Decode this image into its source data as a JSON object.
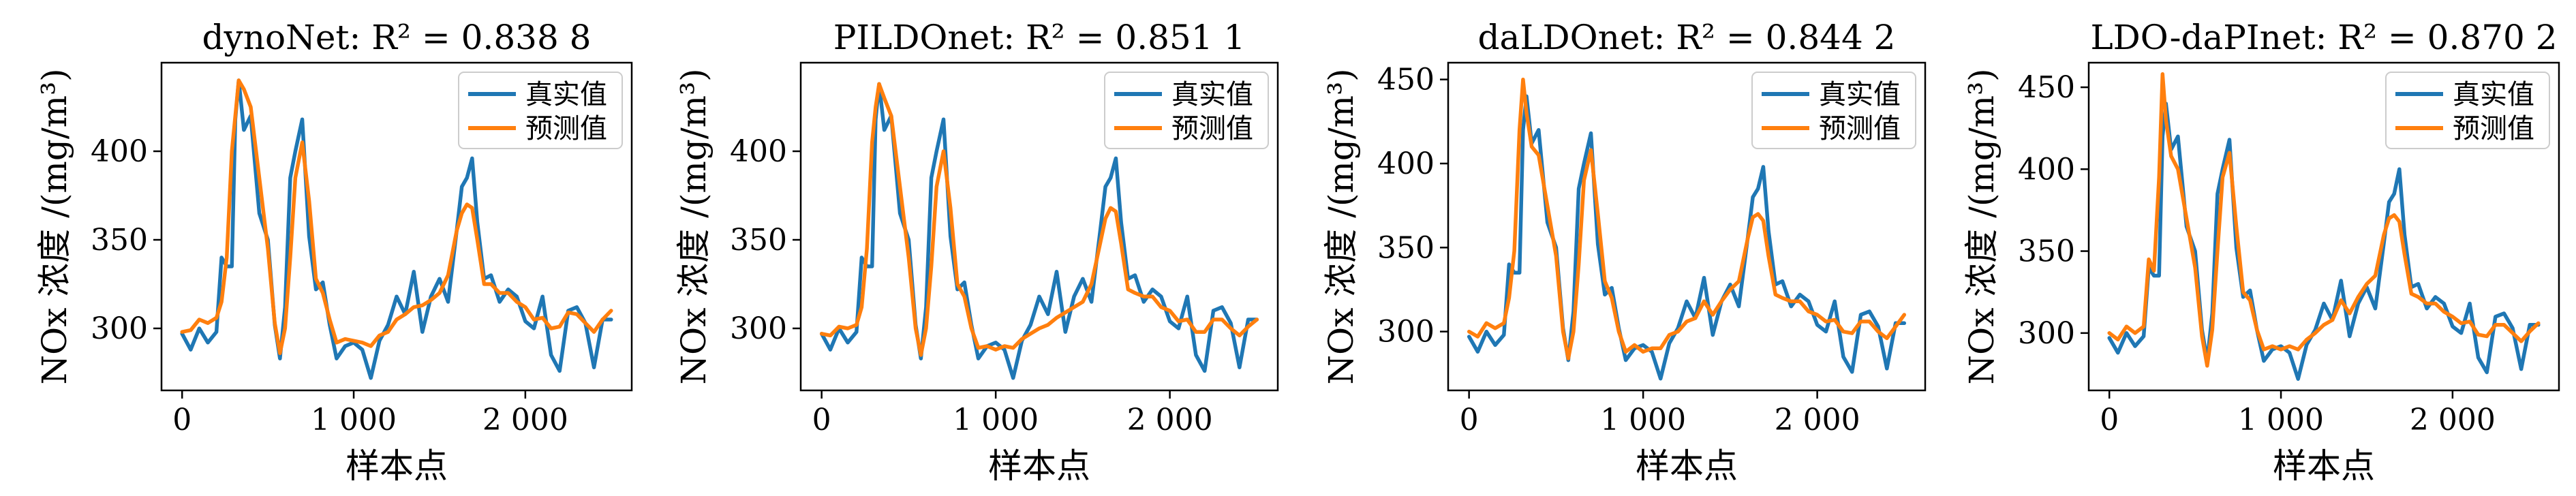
{
  "colors": {
    "actual": "#1f77b4",
    "predicted": "#ff7f0e"
  },
  "chart_data": [
    {
      "type": "line",
      "title": "dynoNet: R² = 0.838 8",
      "xlabel": "样本点",
      "ylabel": "NOx 浓度 /(mg/m³)",
      "xlim": [
        -120,
        2620
      ],
      "ylim": [
        265,
        450
      ],
      "xticks": [
        0,
        1000,
        2000
      ],
      "xtick_labels": [
        "0",
        "1 000",
        "2 000"
      ],
      "yticks": [
        300,
        350,
        400
      ],
      "ytick_labels": [
        "300",
        "350",
        "400"
      ],
      "legend_position": "top-right",
      "series": [
        {
          "name": "真实值",
          "color": "#1f77b4",
          "x": [
            0,
            50,
            100,
            150,
            200,
            230,
            260,
            290,
            310,
            330,
            360,
            400,
            450,
            500,
            540,
            570,
            600,
            630,
            660,
            700,
            740,
            780,
            820,
            860,
            900,
            950,
            1000,
            1050,
            1100,
            1150,
            1200,
            1250,
            1300,
            1350,
            1400,
            1450,
            1500,
            1550,
            1600,
            1630,
            1660,
            1690,
            1720,
            1760,
            1800,
            1850,
            1900,
            1950,
            2000,
            2050,
            2100,
            2150,
            2200,
            2250,
            2300,
            2350,
            2400,
            2450,
            2500
          ],
          "y": [
            297,
            288,
            300,
            292,
            298,
            340,
            335,
            335,
            418,
            440,
            412,
            420,
            365,
            350,
            302,
            283,
            312,
            385,
            400,
            418,
            352,
            322,
            326,
            302,
            283,
            290,
            292,
            288,
            272,
            293,
            302,
            318,
            308,
            332,
            298,
            318,
            328,
            315,
            355,
            380,
            385,
            396,
            360,
            328,
            330,
            315,
            322,
            318,
            304,
            300,
            318,
            285,
            276,
            310,
            312,
            303,
            278,
            305,
            305
          ]
        },
        {
          "name": "预测值",
          "color": "#ff7f0e",
          "x": [
            0,
            50,
            100,
            150,
            200,
            230,
            260,
            290,
            310,
            330,
            360,
            400,
            450,
            500,
            540,
            570,
            600,
            630,
            660,
            700,
            740,
            780,
            820,
            860,
            900,
            950,
            1000,
            1050,
            1100,
            1150,
            1200,
            1250,
            1300,
            1350,
            1400,
            1450,
            1500,
            1550,
            1600,
            1630,
            1660,
            1690,
            1720,
            1760,
            1800,
            1850,
            1900,
            1950,
            2000,
            2050,
            2100,
            2150,
            2200,
            2250,
            2300,
            2350,
            2400,
            2450,
            2500
          ],
          "y": [
            298,
            299,
            305,
            303,
            306,
            315,
            340,
            400,
            420,
            440,
            435,
            425,
            385,
            345,
            303,
            286,
            300,
            340,
            385,
            405,
            372,
            328,
            320,
            305,
            292,
            294,
            293,
            292,
            290,
            296,
            298,
            305,
            308,
            312,
            313,
            316,
            320,
            330,
            355,
            365,
            370,
            368,
            350,
            325,
            325,
            320,
            320,
            315,
            312,
            305,
            306,
            300,
            301,
            309,
            308,
            303,
            298,
            305,
            310
          ]
        }
      ]
    },
    {
      "type": "line",
      "title": "PILDOnet: R² = 0.851 1",
      "xlabel": "样本点",
      "ylabel": "NOx 浓度 /(mg/m³)",
      "xlim": [
        -120,
        2620
      ],
      "ylim": [
        265,
        450
      ],
      "xticks": [
        0,
        1000,
        2000
      ],
      "xtick_labels": [
        "0",
        "1 000",
        "2 000"
      ],
      "yticks": [
        300,
        350,
        400
      ],
      "ytick_labels": [
        "300",
        "350",
        "400"
      ],
      "legend_position": "top-right",
      "series": [
        {
          "name": "真实值",
          "color": "#1f77b4",
          "x": [
            0,
            50,
            100,
            150,
            200,
            230,
            260,
            290,
            310,
            330,
            360,
            400,
            450,
            500,
            540,
            570,
            600,
            630,
            660,
            700,
            740,
            780,
            820,
            860,
            900,
            950,
            1000,
            1050,
            1100,
            1150,
            1200,
            1250,
            1300,
            1350,
            1400,
            1450,
            1500,
            1550,
            1600,
            1630,
            1660,
            1690,
            1720,
            1760,
            1800,
            1850,
            1900,
            1950,
            2000,
            2050,
            2100,
            2150,
            2200,
            2250,
            2300,
            2350,
            2400,
            2450,
            2500
          ],
          "y": [
            297,
            288,
            300,
            292,
            298,
            340,
            335,
            335,
            418,
            438,
            412,
            420,
            365,
            350,
            302,
            283,
            312,
            385,
            400,
            418,
            352,
            322,
            326,
            302,
            283,
            290,
            292,
            288,
            272,
            293,
            302,
            318,
            308,
            332,
            298,
            318,
            328,
            315,
            355,
            380,
            385,
            396,
            360,
            328,
            330,
            315,
            322,
            318,
            304,
            300,
            318,
            285,
            276,
            310,
            312,
            303,
            278,
            305,
            305
          ]
        },
        {
          "name": "预测值",
          "color": "#ff7f0e",
          "x": [
            0,
            50,
            100,
            150,
            200,
            230,
            260,
            290,
            310,
            330,
            360,
            400,
            450,
            500,
            540,
            570,
            600,
            630,
            660,
            700,
            740,
            780,
            820,
            860,
            900,
            950,
            1000,
            1050,
            1100,
            1150,
            1200,
            1250,
            1300,
            1350,
            1400,
            1450,
            1500,
            1550,
            1600,
            1630,
            1660,
            1690,
            1720,
            1760,
            1800,
            1850,
            1900,
            1950,
            2000,
            2050,
            2100,
            2150,
            2200,
            2250,
            2300,
            2350,
            2400,
            2450,
            2500
          ],
          "y": [
            297,
            296,
            301,
            300,
            302,
            312,
            345,
            405,
            425,
            438,
            430,
            420,
            380,
            340,
            300,
            285,
            300,
            335,
            380,
            400,
            368,
            325,
            318,
            300,
            289,
            290,
            288,
            290,
            289,
            294,
            297,
            300,
            302,
            306,
            309,
            312,
            315,
            325,
            348,
            362,
            368,
            366,
            348,
            322,
            320,
            318,
            318,
            312,
            310,
            304,
            305,
            298,
            298,
            305,
            305,
            300,
            296,
            301,
            305
          ]
        }
      ]
    },
    {
      "type": "line",
      "title": "daLDOnet: R² = 0.844 2",
      "xlabel": "样本点",
      "ylabel": "NOx 浓度 /(mg/m³)",
      "xlim": [
        -120,
        2620
      ],
      "ylim": [
        265,
        460
      ],
      "xticks": [
        0,
        1000,
        2000
      ],
      "xtick_labels": [
        "0",
        "1 000",
        "2 000"
      ],
      "yticks": [
        300,
        350,
        400,
        450
      ],
      "ytick_labels": [
        "300",
        "350",
        "400",
        "450"
      ],
      "legend_position": "top-right",
      "series": [
        {
          "name": "真实值",
          "color": "#1f77b4",
          "x": [
            0,
            50,
            100,
            150,
            200,
            230,
            260,
            290,
            310,
            330,
            360,
            400,
            450,
            500,
            540,
            570,
            600,
            630,
            660,
            700,
            740,
            780,
            820,
            860,
            900,
            950,
            1000,
            1050,
            1100,
            1150,
            1200,
            1250,
            1300,
            1350,
            1400,
            1450,
            1500,
            1550,
            1600,
            1630,
            1660,
            1690,
            1720,
            1760,
            1800,
            1850,
            1900,
            1950,
            2000,
            2050,
            2100,
            2150,
            2200,
            2250,
            2300,
            2350,
            2400,
            2450,
            2500
          ],
          "y": [
            297,
            288,
            300,
            292,
            298,
            340,
            335,
            335,
            420,
            440,
            412,
            420,
            365,
            350,
            302,
            283,
            312,
            385,
            400,
            418,
            352,
            322,
            326,
            302,
            283,
            290,
            292,
            288,
            272,
            293,
            302,
            318,
            308,
            332,
            298,
            318,
            328,
            315,
            355,
            380,
            385,
            398,
            360,
            328,
            330,
            315,
            322,
            318,
            304,
            300,
            318,
            285,
            276,
            310,
            312,
            303,
            278,
            305,
            305
          ]
        },
        {
          "name": "预测值",
          "color": "#ff7f0e",
          "x": [
            0,
            50,
            100,
            150,
            200,
            230,
            260,
            290,
            310,
            330,
            360,
            400,
            450,
            500,
            540,
            570,
            600,
            630,
            660,
            700,
            740,
            780,
            820,
            860,
            900,
            950,
            1000,
            1050,
            1100,
            1150,
            1200,
            1250,
            1300,
            1350,
            1400,
            1450,
            1500,
            1550,
            1600,
            1630,
            1660,
            1690,
            1720,
            1760,
            1800,
            1850,
            1900,
            1950,
            2000,
            2050,
            2100,
            2150,
            2200,
            2250,
            2300,
            2350,
            2400,
            2450,
            2500
          ],
          "y": [
            300,
            297,
            305,
            302,
            305,
            320,
            348,
            420,
            450,
            430,
            410,
            405,
            375,
            345,
            300,
            284,
            300,
            340,
            390,
            408,
            370,
            330,
            320,
            300,
            288,
            292,
            288,
            290,
            290,
            298,
            300,
            306,
            308,
            318,
            310,
            318,
            325,
            330,
            355,
            368,
            370,
            366,
            345,
            322,
            320,
            318,
            318,
            312,
            310,
            306,
            307,
            300,
            299,
            306,
            306,
            300,
            296,
            303,
            310
          ]
        }
      ]
    },
    {
      "type": "line",
      "title": "LDO-daPInet: R² = 0.870 2",
      "xlabel": "样本点",
      "ylabel": "NOx 浓度 /(mg/m³)",
      "xlim": [
        -120,
        2620
      ],
      "ylim": [
        265,
        465
      ],
      "xticks": [
        0,
        1000,
        2000
      ],
      "xtick_labels": [
        "0",
        "1 000",
        "2 000"
      ],
      "yticks": [
        300,
        350,
        400,
        450
      ],
      "ytick_labels": [
        "300",
        "350",
        "400",
        "450"
      ],
      "legend_position": "top-right",
      "series": [
        {
          "name": "真实值",
          "color": "#1f77b4",
          "x": [
            0,
            50,
            100,
            150,
            200,
            230,
            260,
            290,
            310,
            330,
            360,
            400,
            450,
            500,
            540,
            570,
            600,
            630,
            660,
            700,
            740,
            780,
            820,
            860,
            900,
            950,
            1000,
            1050,
            1100,
            1150,
            1200,
            1250,
            1300,
            1350,
            1400,
            1450,
            1500,
            1550,
            1600,
            1630,
            1660,
            1690,
            1720,
            1760,
            1800,
            1850,
            1900,
            1950,
            2000,
            2050,
            2100,
            2150,
            2200,
            2250,
            2300,
            2350,
            2400,
            2450,
            2500
          ],
          "y": [
            297,
            288,
            300,
            292,
            298,
            340,
            335,
            335,
            420,
            440,
            412,
            420,
            365,
            350,
            302,
            283,
            312,
            385,
            400,
            418,
            352,
            322,
            326,
            302,
            283,
            290,
            292,
            288,
            272,
            293,
            302,
            318,
            308,
            332,
            298,
            318,
            328,
            315,
            355,
            380,
            385,
            400,
            360,
            328,
            330,
            315,
            322,
            318,
            304,
            300,
            318,
            285,
            276,
            310,
            312,
            303,
            278,
            305,
            305
          ]
        },
        {
          "name": "预测值",
          "color": "#ff7f0e",
          "x": [
            0,
            50,
            100,
            150,
            200,
            230,
            260,
            290,
            310,
            330,
            360,
            400,
            450,
            500,
            540,
            570,
            600,
            630,
            660,
            700,
            740,
            780,
            820,
            860,
            900,
            950,
            1000,
            1050,
            1100,
            1150,
            1200,
            1250,
            1300,
            1350,
            1400,
            1450,
            1500,
            1550,
            1600,
            1630,
            1660,
            1690,
            1720,
            1760,
            1800,
            1850,
            1900,
            1950,
            2000,
            2050,
            2100,
            2150,
            2200,
            2250,
            2300,
            2350,
            2400,
            2450,
            2500
          ],
          "y": [
            300,
            296,
            304,
            300,
            304,
            345,
            338,
            395,
            458,
            430,
            408,
            400,
            370,
            340,
            298,
            280,
            302,
            350,
            395,
            410,
            365,
            325,
            320,
            302,
            290,
            292,
            290,
            292,
            290,
            296,
            300,
            305,
            308,
            320,
            312,
            322,
            330,
            335,
            360,
            370,
            372,
            368,
            348,
            324,
            322,
            318,
            318,
            313,
            310,
            306,
            307,
            299,
            298,
            305,
            305,
            300,
            295,
            301,
            306
          ]
        }
      ]
    }
  ]
}
